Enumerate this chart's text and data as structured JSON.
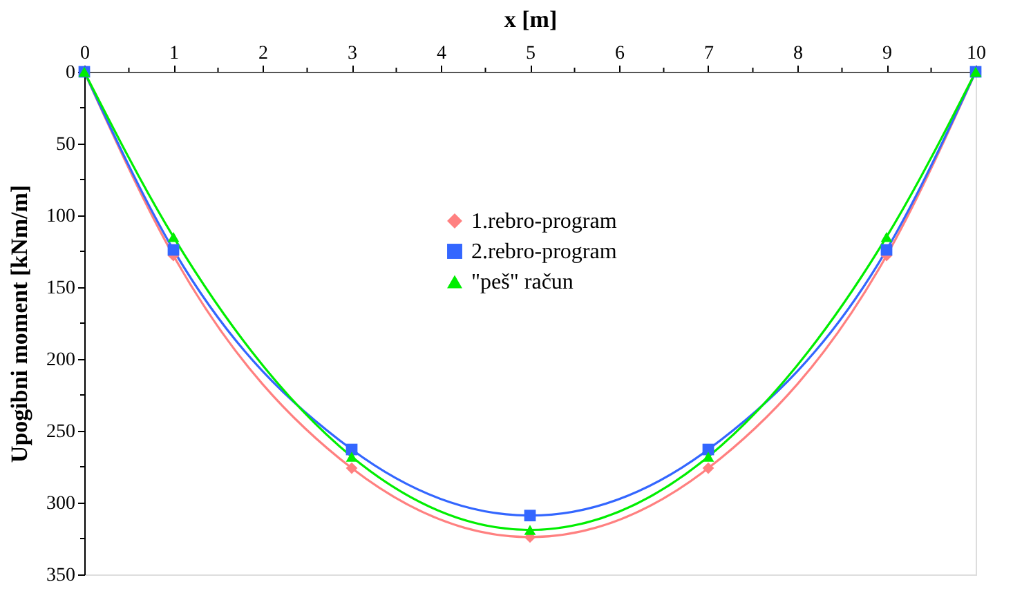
{
  "chart_data": {
    "type": "line",
    "xlabel": "x [m]",
    "ylabel": "Upogibni moment [kNm/m]",
    "x": [
      0,
      1,
      3,
      5,
      7,
      9,
      10
    ],
    "series": [
      {
        "name": "1.rebro-program",
        "color": "#ff8080",
        "marker": "diamond",
        "values": [
          0,
          128,
          276,
          324,
          276,
          128,
          0
        ]
      },
      {
        "name": "2.rebro-program",
        "color": "#3366ff",
        "marker": "square",
        "values": [
          0,
          124,
          263,
          309,
          263,
          124,
          0
        ]
      },
      {
        "name": "\"peš\" račun",
        "color": "#00ee00",
        "marker": "triangle",
        "values": [
          0,
          115,
          268,
          319,
          268,
          115,
          0
        ]
      }
    ],
    "xlim": [
      0,
      10
    ],
    "xticks": [
      0,
      {
        "value": 0.5,
        "label": null
      },
      1,
      {
        "value": 1.5,
        "label": null
      },
      2,
      {
        "value": 2.5,
        "label": null
      },
      3,
      {
        "value": 3.5,
        "label": null
      },
      4,
      {
        "value": 4.5,
        "label": null
      },
      5,
      {
        "value": 5.5,
        "label": null
      },
      6,
      {
        "value": 6.5,
        "label": null
      },
      7,
      {
        "value": 7.5,
        "label": null
      },
      8,
      {
        "value": 8.5,
        "label": null
      },
      9,
      {
        "value": 9.5,
        "label": null
      },
      10
    ],
    "ylim": [
      350,
      0
    ],
    "yticks": [
      0,
      {
        "value": 25,
        "label": null
      },
      50,
      {
        "value": 75,
        "label": null
      },
      100,
      {
        "value": 125,
        "label": null
      },
      150,
      {
        "value": 175,
        "label": null
      },
      200,
      {
        "value": 225,
        "label": null
      },
      250,
      {
        "value": 275,
        "label": null
      },
      300,
      {
        "value": 325,
        "label": null
      },
      350
    ],
    "grid": false,
    "legend": "top",
    "line_style": "solid"
  }
}
